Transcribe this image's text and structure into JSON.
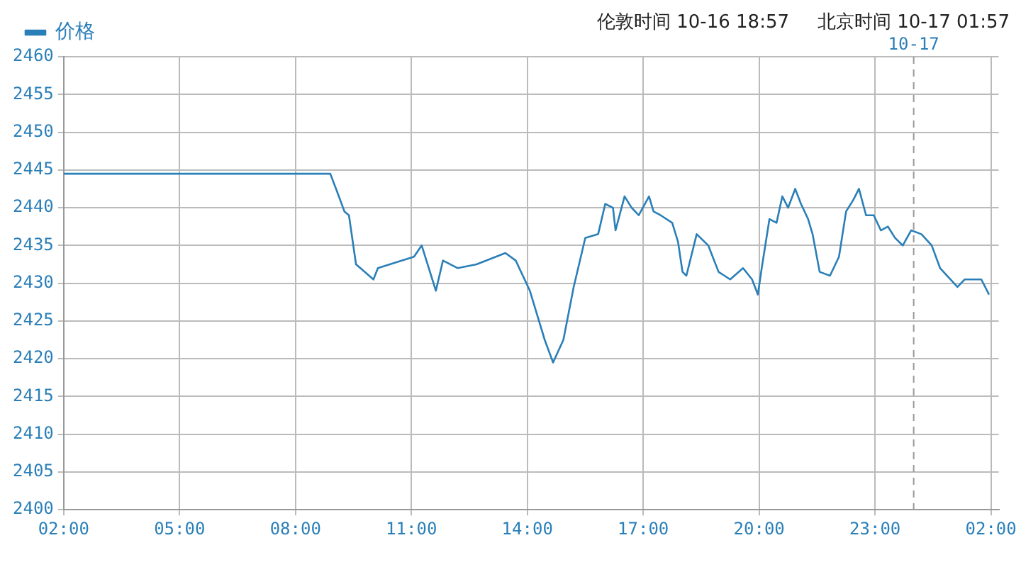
{
  "chart_data": {
    "type": "line",
    "legend": "top",
    "grid": true,
    "marker": "none",
    "line_style": "solid",
    "xlim": [
      "--10-16T02:00",
      "--10-17T02:12"
    ],
    "xticks": [
      {
        "value": "--10-16T02:00",
        "label": "02:00"
      },
      {
        "value": "--10-16T05:00",
        "label": "05:00"
      },
      {
        "value": "--10-16T08:00",
        "label": "08:00"
      },
      {
        "value": "--10-16T11:00",
        "label": "11:00"
      },
      {
        "value": "--10-16T14:00",
        "label": "14:00"
      },
      {
        "value": "--10-16T17:00",
        "label": "17:00"
      },
      {
        "value": "--10-16T20:00",
        "label": "20:00"
      },
      {
        "value": "--10-16T23:00",
        "label": "23:00"
      },
      {
        "value": "--10-17T02:00",
        "label": "02:00"
      }
    ],
    "ylim": [
      2400,
      2460
    ],
    "yticks": [
      2400,
      2405,
      2410,
      2415,
      2420,
      2425,
      2430,
      2435,
      2440,
      2445,
      2450,
      2455,
      2460
    ],
    "ref_lines": [
      {
        "axis": "x",
        "value": "--10-17",
        "label": "10-17",
        "line_style": "dashed",
        "color": "#999999"
      }
    ],
    "annotations": [
      "伦敦时间 10-16 18:57",
      "北京时间 10-17 01:57"
    ],
    "series": [
      {
        "name": "价格",
        "color": "#2a7fb8",
        "x": [
          "--10-16T02:00",
          "--10-16T08:54",
          "--10-16T09:03",
          "--10-16T09:16",
          "--10-16T09:23",
          "--10-16T09:34",
          "--10-16T10:01",
          "--10-16T10:08",
          "--10-16T11:04",
          "--10-16T11:16",
          "--10-16T11:38",
          "--10-16T11:49",
          "--10-16T12:12",
          "--10-16T12:41",
          "--10-16T13:26",
          "--10-16T13:42",
          "--10-16T14:04",
          "--10-16T14:27",
          "--10-16T14:40",
          "--10-16T14:56",
          "--10-16T15:12",
          "--10-16T15:30",
          "--10-16T15:50",
          "--10-16T16:01",
          "--10-16T16:13",
          "--10-16T16:17",
          "--10-16T16:31",
          "--10-16T16:42",
          "--10-16T16:53",
          "--10-16T17:09",
          "--10-16T17:16",
          "--10-16T17:27",
          "--10-16T17:45",
          "--10-16T17:54",
          "--10-16T18:01",
          "--10-16T18:07",
          "--10-16T18:23",
          "--10-16T18:41",
          "--10-16T18:57",
          "--10-16T19:15",
          "--10-16T19:35",
          "--10-16T19:49",
          "--10-16T19:58",
          "--10-16T20:04",
          "--10-16T20:16",
          "--10-16T20:27",
          "--10-16T20:36",
          "--10-16T20:45",
          "--10-16T20:56",
          "--10-16T21:05",
          "--10-16T21:16",
          "--10-16T21:23",
          "--10-16T21:34",
          "--10-16T21:50",
          "--10-16T22:04",
          "--10-16T22:15",
          "--10-16T22:26",
          "--10-16T22:35",
          "--10-16T22:46",
          "--10-16T22:58",
          "--10-16T23:09",
          "--10-16T23:20",
          "--10-16T23:31",
          "--10-16T23:43",
          "--10-16T23:56",
          "--10-17T00:12",
          "--10-17T00:28",
          "--10-17T00:41",
          "--10-17T01:08",
          "--10-17T01:19",
          "--10-17T01:45",
          "--10-17T01:57"
        ],
        "values": [
          2444.5,
          2444.5,
          2442.5,
          2439.5,
          2439,
          2432.5,
          2430.5,
          2432,
          2433.5,
          2435,
          2429,
          2433,
          2432,
          2432.5,
          2434,
          2433,
          2429,
          2422.5,
          2419.5,
          2422.5,
          2429.5,
          2436,
          2436.5,
          2440.5,
          2440,
          2437,
          2441.5,
          2440,
          2439,
          2441.5,
          2439.5,
          2439,
          2438,
          2435.5,
          2431.5,
          2431,
          2436.5,
          2435,
          2431.5,
          2430.5,
          2432,
          2430.5,
          2428.5,
          2432,
          2438.5,
          2438,
          2441.5,
          2440,
          2442.5,
          2440.5,
          2438.5,
          2436.5,
          2431.5,
          2431,
          2433.5,
          2439.5,
          2441,
          2442.5,
          2439,
          2439,
          2437,
          2437.5,
          2436,
          2435,
          2437,
          2436.5,
          2435,
          2432,
          2429.5,
          2430.5,
          2430.5,
          2428.5
        ]
      }
    ]
  }
}
